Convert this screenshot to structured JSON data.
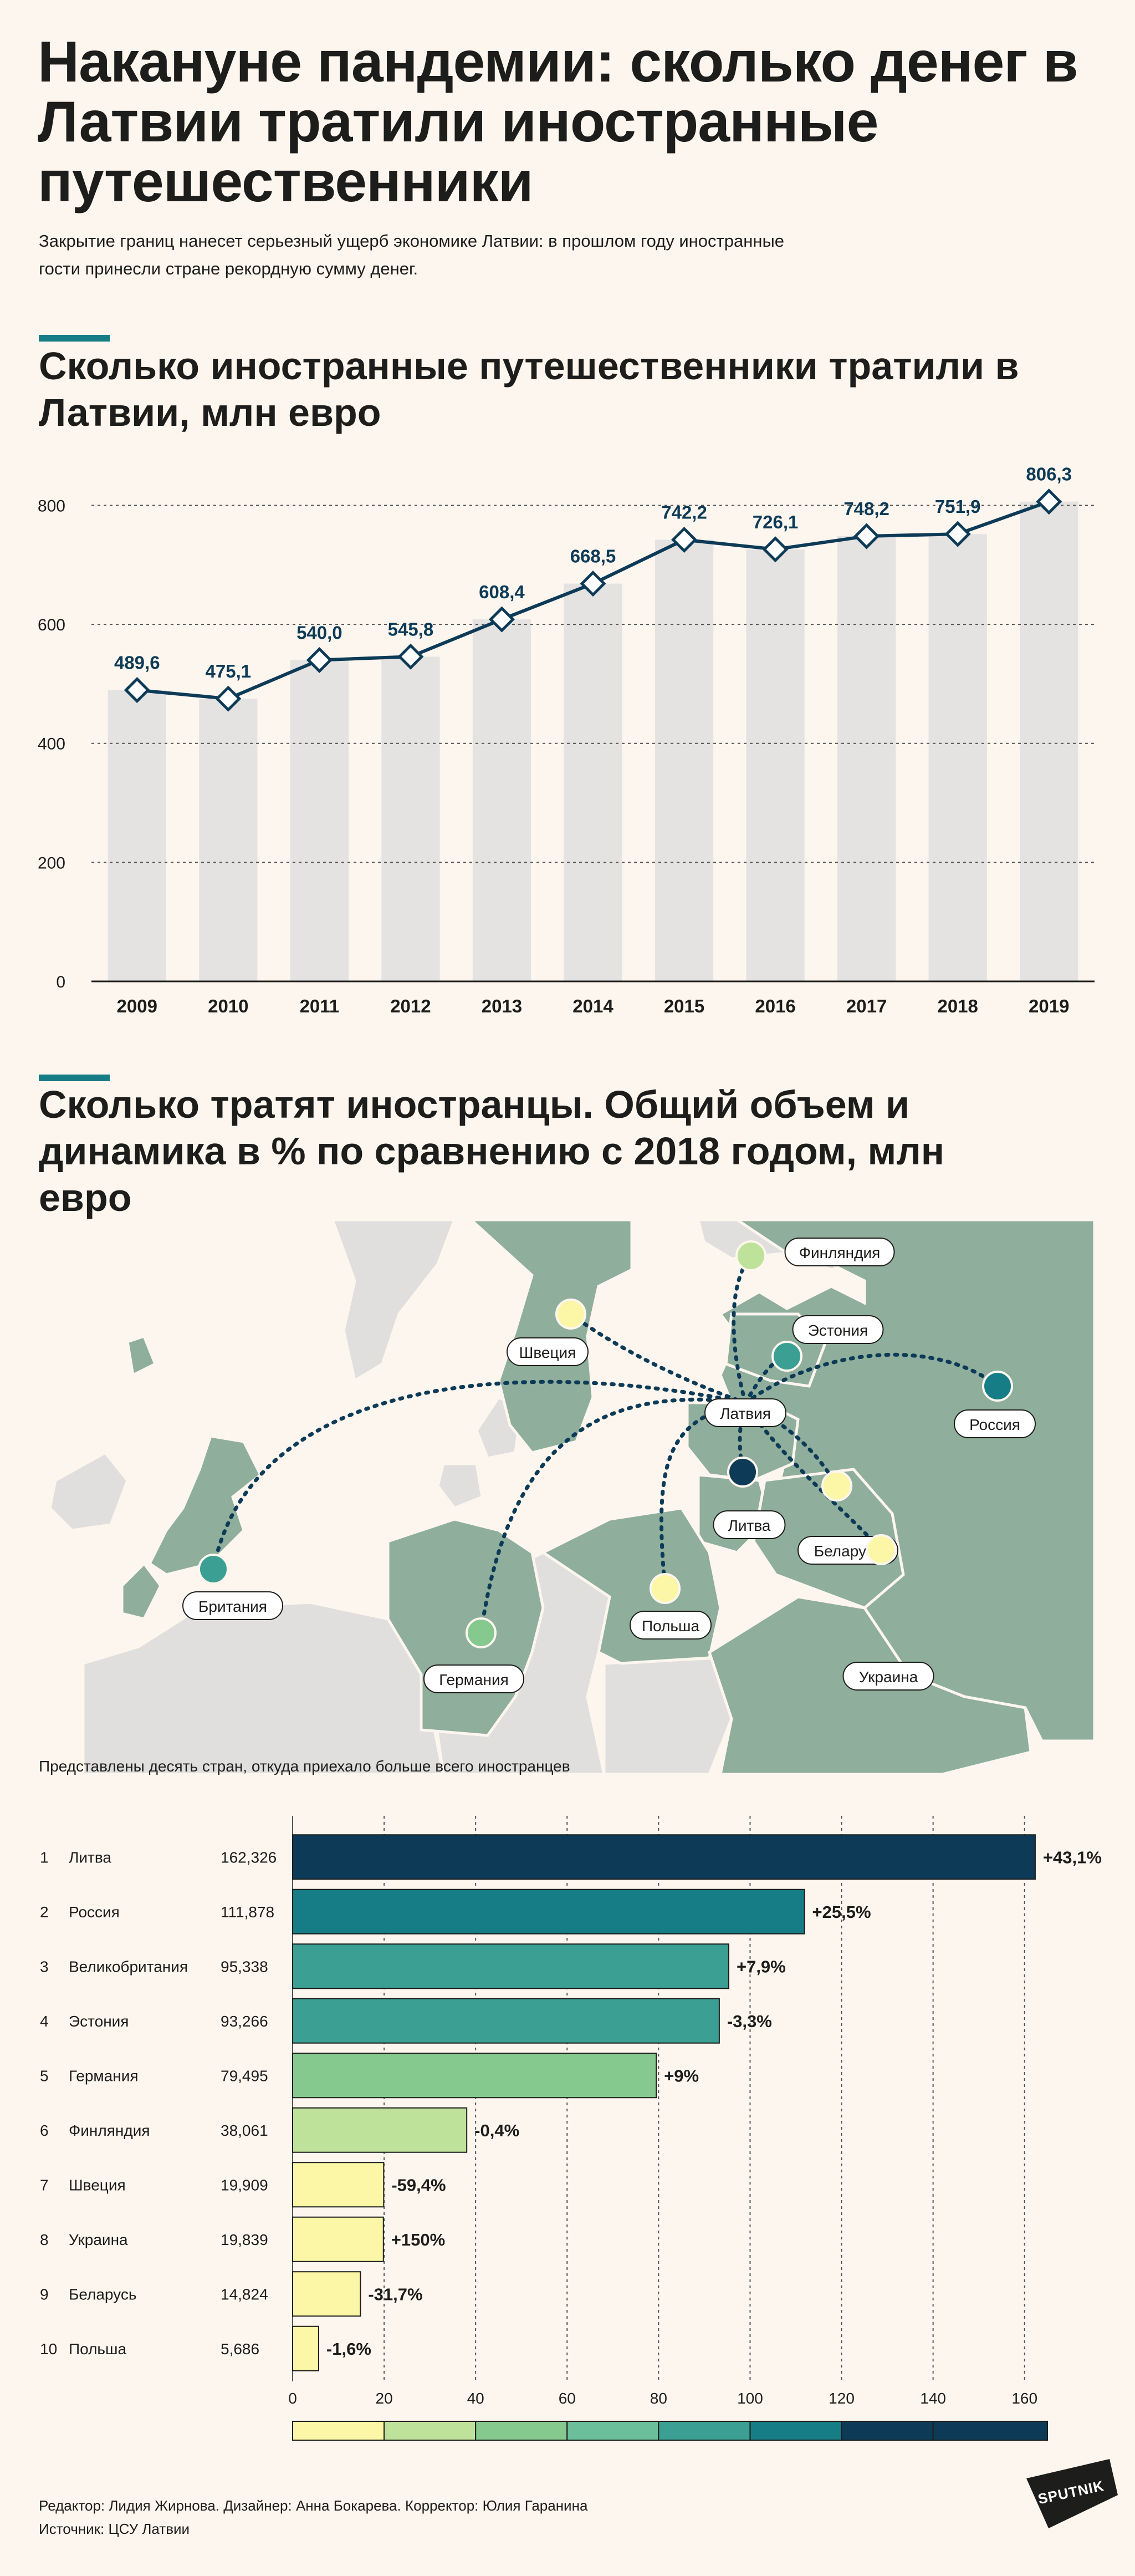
{
  "header": {
    "title": "Накануне пандемии: сколько денег в Латвии тратили иностранные путешественники",
    "subtitle": "Закрытие границ нанесет серьезный ущерб экономике Латвии: в прошлом году иностранные гости принесли стране рекордную сумму денег."
  },
  "sections": {
    "spending_title": "Сколько иностранные путешественники тратили в Латвии, млн евро",
    "countries_title": "Сколько тратят иностранцы. Общий объем и динамика в % по сравнению с 2018 годом, млн евро"
  },
  "map": {
    "labels": {
      "latvia": "Латвия",
      "finland": "Финляндия",
      "sweden": "Швеция",
      "estonia": "Эстония",
      "russia": "Россия",
      "lithuania": "Литва",
      "belarus": "Беларусь",
      "britain": "Британия",
      "poland": "Польша",
      "germany": "Германия",
      "ukraine": "Украина"
    }
  },
  "note": "Представлены десять стран, откуда приехало больше всего иностранцев",
  "footer": {
    "credits": "Редактор: Лидия Жирнова. Дизайнер: Анна Бокарева. Корректор: Юлия Гаранина",
    "source": "Источник: ЦСУ Латвии",
    "logo": "SPUTNIK"
  },
  "colors": {
    "accent": "#167c85",
    "line": "#0d3b57",
    "bar_grey": "#e4e3e2",
    "map_green": "#8fae9c",
    "map_grey": "#e0dfdd",
    "scale": [
      "#fbf7a6",
      "#bfe29b",
      "#86c98f",
      "#6bbf9a",
      "#3b9f94",
      "#167c85",
      "#0d3b57"
    ]
  },
  "chart_data": [
    {
      "type": "bar",
      "categories": [
        "2009",
        "2010",
        "2011",
        "2012",
        "2013",
        "2014",
        "2015",
        "2016",
        "2017",
        "2018",
        "2019"
      ],
      "values": [
        489.6,
        475.1,
        540.0,
        545.8,
        608.4,
        668.5,
        742.2,
        726.1,
        748.2,
        751.9,
        806.3
      ],
      "value_labels": [
        "489,6",
        "475,1",
        "540,0",
        "545,8",
        "608,4",
        "668,5",
        "742,2",
        "726,1",
        "748,2",
        "751,9",
        "806,3"
      ],
      "overlay": "line-with-diamond-markers",
      "yticks": [
        0,
        200,
        400,
        600,
        800
      ],
      "ylim": [
        0,
        820
      ],
      "grid": true,
      "title": "Сколько иностранные путешественники тратили в Латвии, млн евро"
    },
    {
      "type": "bar",
      "orientation": "horizontal",
      "ranks": [
        "1",
        "2",
        "3",
        "4",
        "5",
        "6",
        "7",
        "8",
        "9",
        "10"
      ],
      "categories": [
        "Литва",
        "Россия",
        "Великобритания",
        "Эстония",
        "Германия",
        "Финляндия",
        "Швеция",
        "Украина",
        "Беларусь",
        "Польша"
      ],
      "values": [
        162.326,
        111.878,
        95.338,
        93.266,
        79.495,
        38.061,
        19.909,
        19.839,
        14.824,
        5.686
      ],
      "value_labels": [
        "162,326",
        "111,878",
        "95,338",
        "93,266",
        "79,495",
        "38,061",
        "19,909",
        "19,839",
        "14,824",
        "5,686"
      ],
      "changes": [
        "+43,1%",
        "+25,5%",
        "+7,9%",
        "-3,3%",
        "+9%",
        "-0,4%",
        "-59,4%",
        "+150%",
        "-31,7%",
        "-1,6%"
      ],
      "bar_colors": [
        "#0d3b57",
        "#167c85",
        "#3b9f94",
        "#3b9f94",
        "#86c98f",
        "#bfe29b",
        "#fbf7a6",
        "#fbf7a6",
        "#fbf7a6",
        "#fbf7a6"
      ],
      "xticks": [
        0,
        20,
        40,
        60,
        80,
        100,
        120,
        140,
        160
      ],
      "xlim": [
        0,
        165
      ],
      "grid": true,
      "legend_scale_colors": [
        "#fbf7a6",
        "#bfe29b",
        "#86c98f",
        "#6bbf9a",
        "#3b9f94",
        "#167c85",
        "#0d3b57",
        "#0d3b57"
      ]
    }
  ]
}
